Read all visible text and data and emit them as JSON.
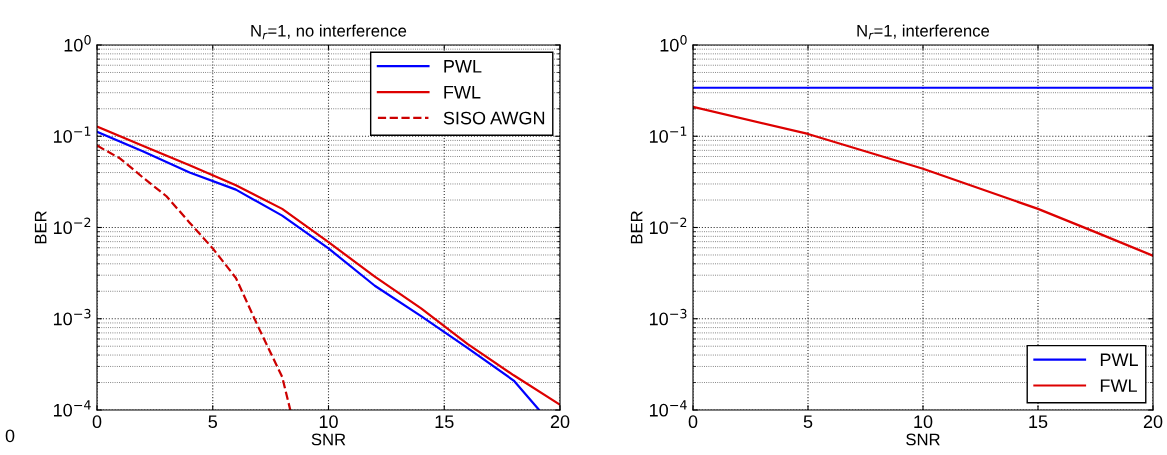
{
  "chart_data": [
    {
      "type": "line",
      "title": "N$_{r}$=1, no interference",
      "xlabel": "SNR",
      "ylabel": "BER",
      "log": "y",
      "grid": true,
      "legend": "top right",
      "xlim": [
        0,
        20
      ],
      "xticks": [
        0,
        5,
        10,
        15,
        20
      ],
      "ylim": [
        0.0001,
        1
      ],
      "yticks": [
        {
          "value": 0.0001,
          "label": "10$^{−4}$"
        },
        {
          "value": 0.001,
          "label": "10$^{−3}$"
        },
        {
          "value": 0.01,
          "label": "10$^{−2}$"
        },
        {
          "value": 0.1,
          "label": "10$^{−1}$"
        },
        {
          "value": 1,
          "label": "10$^{0}$"
        }
      ],
      "annotations": [
        "0"
      ],
      "series": [
        {
          "name": "PWL",
          "color": "#0000ff",
          "line_style": "solid",
          "x": [
            0,
            2,
            4,
            6,
            8,
            10,
            12,
            14,
            16,
            18,
            19.1
          ],
          "values": [
            0.112,
            0.068,
            0.04,
            0.026,
            0.0135,
            0.0059,
            0.0023,
            0.00107,
            0.00048,
            0.00021,
            0.0001
          ]
        },
        {
          "name": "FWL",
          "color": "#dd0000",
          "line_style": "solid",
          "x": [
            0,
            2,
            4,
            6,
            8,
            10,
            12,
            14,
            16,
            18,
            20
          ],
          "values": [
            0.128,
            0.078,
            0.048,
            0.029,
            0.016,
            0.0069,
            0.0029,
            0.0013,
            0.00053,
            0.00024,
            0.000114
          ]
        },
        {
          "name": "SISO AWGN",
          "color": "#cc0000",
          "line_style": "dashed",
          "x": [
            0,
            1,
            2,
            3,
            4,
            5,
            6,
            7,
            8,
            8.35
          ],
          "values": [
            0.079,
            0.057,
            0.035,
            0.022,
            0.0113,
            0.0059,
            0.0028,
            0.00078,
            0.00023,
            0.0001
          ]
        }
      ]
    },
    {
      "type": "line",
      "title": "N$_{r}$=1, interference",
      "xlabel": "SNR",
      "ylabel": "BER",
      "log": "y",
      "grid": true,
      "legend": "bottom right",
      "xlim": [
        0,
        20
      ],
      "xticks": [
        0,
        5,
        10,
        15,
        20
      ],
      "ylim": [
        0.0001,
        1
      ],
      "yticks": [
        {
          "value": 0.0001,
          "label": "10$^{−4}$"
        },
        {
          "value": 0.001,
          "label": "10$^{−3}$"
        },
        {
          "value": 0.01,
          "label": "10$^{−2}$"
        },
        {
          "value": 0.1,
          "label": "10$^{−1}$"
        },
        {
          "value": 1,
          "label": "10$^{0}$"
        }
      ],
      "series": [
        {
          "name": "PWL",
          "color": "#0000ff",
          "line_style": "solid",
          "x": [
            0,
            5,
            10,
            15,
            20
          ],
          "values": [
            0.34,
            0.34,
            0.34,
            0.34,
            0.34
          ]
        },
        {
          "name": "FWL",
          "color": "#dd0000",
          "line_style": "solid",
          "x": [
            0,
            5,
            10,
            15,
            17.5,
            20
          ],
          "values": [
            0.21,
            0.106,
            0.044,
            0.016,
            0.0089,
            0.0049
          ]
        }
      ]
    }
  ]
}
